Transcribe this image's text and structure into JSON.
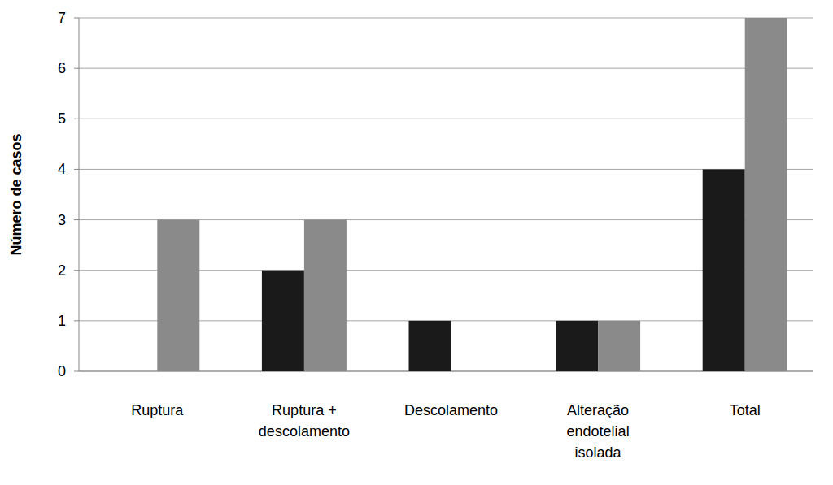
{
  "chart_data": {
    "type": "bar",
    "y_label": "Número de casos",
    "categories": [
      "Ruptura",
      "Ruptura + descolamento",
      "Descolamento",
      "Alteração endotelial isolada",
      "Total"
    ],
    "series": [
      {
        "color": "#1a1a1a",
        "values": [
          0,
          2,
          1,
          1,
          4
        ]
      },
      {
        "color": "#8a8a8a",
        "values": [
          3,
          3,
          0,
          1,
          7
        ]
      }
    ],
    "ylim": [
      0,
      7
    ],
    "yticks": [
      0,
      1,
      2,
      3,
      4,
      5,
      6,
      7
    ],
    "grid": true
  }
}
